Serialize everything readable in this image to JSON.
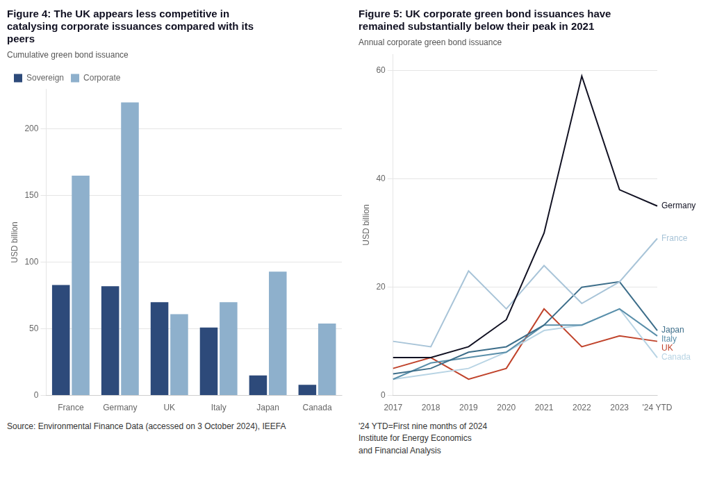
{
  "chart_data": [
    {
      "type": "bar",
      "title": [
        "Figure 4: The UK appears less competitive in",
        "catalysing corporate issuances compared with its",
        "peers"
      ],
      "subtitle": "Cumulative green bond issuance",
      "ylabel": "USD billion",
      "categories": [
        "France",
        "Germany",
        "UK",
        "Italy",
        "Japan",
        "Canada"
      ],
      "series": [
        {
          "name": "Sovereign",
          "color": "#2d4a7a",
          "values": [
            83,
            82,
            70,
            51,
            15,
            8
          ]
        },
        {
          "name": "Corporate",
          "color": "#8eb0cc",
          "values": [
            165,
            220,
            61,
            70,
            93,
            54
          ]
        }
      ],
      "ylim": [
        0,
        230
      ],
      "yticks": [
        0,
        50,
        100,
        150,
        200
      ],
      "grid": true,
      "legend": "upper left",
      "annotations": [
        "Source: Environmental Finance Data (accessed on 3 October 2024), IEEFA"
      ]
    },
    {
      "type": "line",
      "title": [
        "Figure 5: UK corporate green bond issuances have",
        "remained substantially below their peak in 2021"
      ],
      "subtitle": "Annual corporate green bond issuance",
      "ylabel": "USD billion",
      "categories": [
        "2017",
        "2018",
        "2019",
        "2020",
        "2021",
        "2022",
        "2023",
        "'24 YTD"
      ],
      "series": [
        {
          "name": "Germany",
          "color": "#111122",
          "values": [
            7,
            7,
            9,
            14,
            30,
            59,
            38,
            35
          ]
        },
        {
          "name": "France",
          "color": "#a8c4d8",
          "values": [
            10,
            9,
            23,
            16,
            24,
            17,
            21,
            29
          ]
        },
        {
          "name": "Japan",
          "color": "#3d6e8a",
          "values": [
            4,
            5,
            8,
            9,
            13,
            20,
            21,
            12
          ]
        },
        {
          "name": "Italy",
          "color": "#5a8faa",
          "values": [
            3,
            6,
            7,
            8,
            13,
            13,
            16,
            11
          ]
        },
        {
          "name": "Canada",
          "color": "#b8d4e4",
          "values": [
            3,
            4,
            5,
            8,
            12,
            13,
            16,
            7
          ]
        },
        {
          "name": "UK",
          "color": "#c0432b",
          "values": [
            5,
            7,
            3,
            5,
            16,
            9,
            11,
            10
          ]
        }
      ],
      "ylim": [
        0,
        63
      ],
      "yticks": [
        0,
        20,
        40,
        60
      ],
      "grid": true,
      "annotations": [
        "'24 YTD=First nine months of 2024",
        "Institute for Energy Economics",
        "and Financial Analysis"
      ]
    }
  ]
}
